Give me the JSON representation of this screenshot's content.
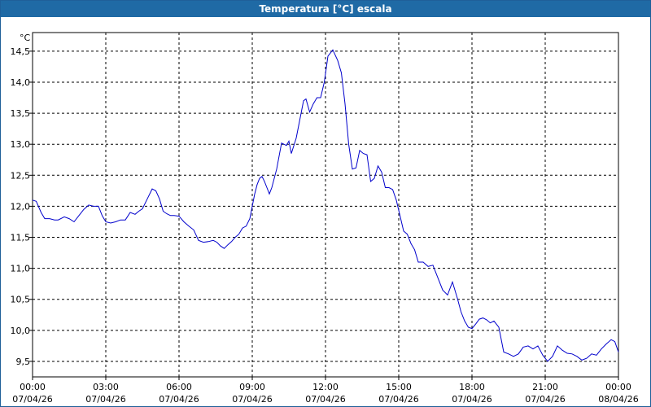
{
  "window": {
    "title": "Temperatura [°C] escala"
  },
  "chart_data": {
    "type": "line",
    "title": "Temperatura [°C] escala",
    "ylabel": "°C",
    "xlabel": "",
    "ylim": [
      9.25,
      14.8
    ],
    "xlim_hours": [
      0,
      24
    ],
    "grid": true,
    "y_ticks": [
      "14,5",
      "14,0",
      "13,5",
      "13,0",
      "12,5",
      "12,0",
      "11,5",
      "11,0",
      "10,5",
      "10,0",
      "9,5"
    ],
    "y_tick_values": [
      14.5,
      14.0,
      13.5,
      13.0,
      12.5,
      12.0,
      11.5,
      11.0,
      10.5,
      10.0,
      9.5
    ],
    "x_ticks": [
      {
        "time": "00:00",
        "date": "07/04/26",
        "hour": 0
      },
      {
        "time": "03:00",
        "date": "07/04/26",
        "hour": 3
      },
      {
        "time": "06:00",
        "date": "07/04/26",
        "hour": 6
      },
      {
        "time": "09:00",
        "date": "07/04/26",
        "hour": 9
      },
      {
        "time": "12:00",
        "date": "07/04/26",
        "hour": 12
      },
      {
        "time": "15:00",
        "date": "07/04/26",
        "hour": 15
      },
      {
        "time": "18:00",
        "date": "07/04/26",
        "hour": 18
      },
      {
        "time": "21:00",
        "date": "07/04/26",
        "hour": 21
      },
      {
        "time": "00:00",
        "date": "08/04/26",
        "hour": 24
      }
    ],
    "series": [
      {
        "color": "#0000cc",
        "x_hours": [
          0.0,
          0.15,
          0.35,
          0.5,
          0.7,
          0.9,
          1.05,
          1.3,
          1.5,
          1.7,
          1.9,
          2.1,
          2.3,
          2.5,
          2.7,
          2.85,
          3.0,
          3.2,
          3.4,
          3.6,
          3.8,
          4.0,
          4.2,
          4.35,
          4.5,
          4.7,
          4.9,
          5.05,
          5.2,
          5.35,
          5.5,
          5.65,
          5.8,
          6.0,
          6.2,
          6.4,
          6.6,
          6.8,
          7.0,
          7.2,
          7.4,
          7.55,
          7.7,
          7.85,
          8.0,
          8.15,
          8.3,
          8.45,
          8.6,
          8.75,
          8.9,
          9.0,
          9.1,
          9.2,
          9.3,
          9.4,
          9.5,
          9.6,
          9.7,
          9.8,
          10.0,
          10.2,
          10.4,
          10.5,
          10.6,
          10.8,
          11.0,
          11.1,
          11.2,
          11.35,
          11.5,
          11.65,
          11.8,
          11.95,
          12.1,
          12.3,
          12.5,
          12.65,
          12.8,
          12.95,
          13.1,
          13.25,
          13.4,
          13.55,
          13.7,
          13.85,
          14.0,
          14.15,
          14.3,
          14.45,
          14.6,
          14.75,
          14.9,
          15.05,
          15.2,
          15.35,
          15.5,
          15.65,
          15.8,
          16.0,
          16.2,
          16.4,
          16.6,
          16.8,
          17.0,
          17.2,
          17.4,
          17.55,
          17.7,
          17.85,
          18.0,
          18.15,
          18.3,
          18.45,
          18.6,
          18.75,
          18.9,
          19.1,
          19.3,
          19.5,
          19.7,
          19.9,
          20.1,
          20.3,
          20.5,
          20.7,
          20.9,
          21.1,
          21.3,
          21.5,
          21.7,
          21.9,
          22.1,
          22.3,
          22.5,
          22.7,
          22.9,
          23.1,
          23.3,
          23.5,
          23.7,
          23.85,
          24.0
        ],
        "y": [
          12.1,
          12.08,
          11.9,
          11.8,
          11.8,
          11.78,
          11.78,
          11.83,
          11.8,
          11.75,
          11.85,
          11.95,
          12.02,
          12.0,
          12.0,
          11.85,
          11.75,
          11.73,
          11.75,
          11.78,
          11.78,
          11.9,
          11.87,
          11.92,
          11.96,
          12.12,
          12.28,
          12.25,
          12.12,
          11.92,
          11.88,
          11.85,
          11.85,
          11.84,
          11.75,
          11.68,
          11.62,
          11.45,
          11.42,
          11.43,
          11.45,
          11.42,
          11.36,
          11.32,
          11.38,
          11.43,
          11.5,
          11.55,
          11.65,
          11.68,
          11.8,
          12.0,
          12.2,
          12.35,
          12.45,
          12.48,
          12.4,
          12.3,
          12.2,
          12.3,
          12.6,
          13.02,
          12.98,
          13.05,
          12.85,
          13.1,
          13.5,
          13.7,
          13.73,
          13.52,
          13.65,
          13.75,
          13.75,
          14.0,
          14.42,
          14.52,
          14.35,
          14.15,
          13.65,
          13.0,
          12.6,
          12.62,
          12.9,
          12.85,
          12.83,
          12.4,
          12.45,
          12.65,
          12.55,
          12.3,
          12.3,
          12.27,
          12.1,
          11.85,
          11.6,
          11.55,
          11.4,
          11.3,
          11.1,
          11.1,
          11.03,
          11.05,
          10.85,
          10.65,
          10.57,
          10.78,
          10.52,
          10.3,
          10.15,
          10.05,
          10.03,
          10.1,
          10.18,
          10.2,
          10.17,
          10.12,
          10.15,
          10.05,
          9.65,
          9.62,
          9.58,
          9.62,
          9.73,
          9.75,
          9.7,
          9.75,
          9.6,
          9.5,
          9.58,
          9.75,
          9.68,
          9.63,
          9.62,
          9.58,
          9.52,
          9.55,
          9.62,
          9.6,
          9.7,
          9.78,
          9.85,
          9.82,
          9.65
        ]
      }
    ]
  }
}
